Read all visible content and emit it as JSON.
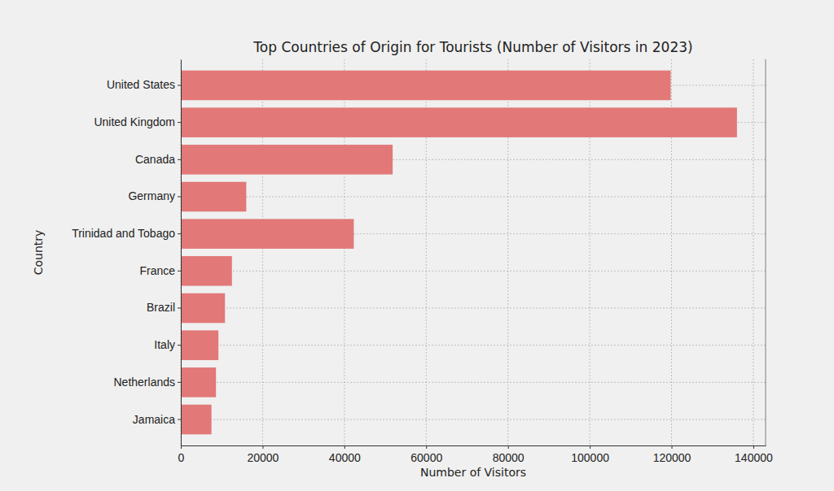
{
  "chart_data": {
    "type": "bar",
    "orientation": "horizontal",
    "title": "Top Countries of Origin for Tourists (Number of Visitors in 2023)",
    "xlabel": "Number of Visitors",
    "ylabel": "Country",
    "categories": [
      "United States",
      "United Kingdom",
      "Canada",
      "Germany",
      "Trinidad and Tobago",
      "France",
      "Brazil",
      "Italy",
      "Netherlands",
      "Jamaica"
    ],
    "values": [
      119800,
      136000,
      51800,
      16000,
      42300,
      12500,
      10800,
      9200,
      8600,
      7500
    ],
    "color": "#e27878",
    "xlim": [
      0,
      143000
    ],
    "xticks": [
      0,
      20000,
      40000,
      60000,
      80000,
      100000,
      120000,
      140000
    ],
    "grid": true
  }
}
